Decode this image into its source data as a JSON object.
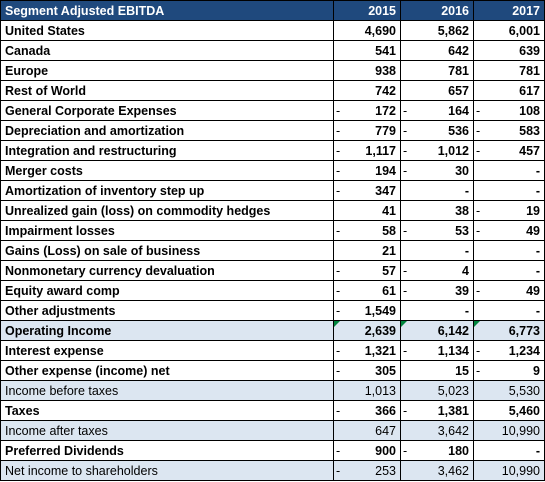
{
  "table": {
    "header": {
      "label": "Segment Adjusted EBITDA",
      "years": [
        "2015",
        "2016",
        "2017"
      ]
    },
    "rows": [
      {
        "label": "United States",
        "cells": [
          {
            "sign": "",
            "value": "4,690"
          },
          {
            "sign": "",
            "value": "5,862"
          },
          {
            "sign": "",
            "value": "6,001"
          }
        ]
      },
      {
        "label": "Canada",
        "cells": [
          {
            "sign": "",
            "value": "541"
          },
          {
            "sign": "",
            "value": "642"
          },
          {
            "sign": "",
            "value": "639"
          }
        ]
      },
      {
        "label": "Europe",
        "cells": [
          {
            "sign": "",
            "value": "938"
          },
          {
            "sign": "",
            "value": "781"
          },
          {
            "sign": "",
            "value": "781"
          }
        ]
      },
      {
        "label": "Rest of World",
        "cells": [
          {
            "sign": "",
            "value": "742"
          },
          {
            "sign": "",
            "value": "657"
          },
          {
            "sign": "",
            "value": "617"
          }
        ]
      },
      {
        "label": "General Corporate Expenses",
        "cells": [
          {
            "sign": "-",
            "value": "172"
          },
          {
            "sign": "-",
            "value": "164"
          },
          {
            "sign": "-",
            "value": "108"
          }
        ]
      },
      {
        "label": "Depreciation and amortization",
        "cells": [
          {
            "sign": "-",
            "value": "779"
          },
          {
            "sign": "-",
            "value": "536"
          },
          {
            "sign": "-",
            "value": "583"
          }
        ]
      },
      {
        "label": "Integration and restructuring",
        "cells": [
          {
            "sign": "-",
            "value": "1,117"
          },
          {
            "sign": "-",
            "value": "1,012"
          },
          {
            "sign": "-",
            "value": "457"
          }
        ]
      },
      {
        "label": "Merger costs",
        "cells": [
          {
            "sign": "-",
            "value": "194"
          },
          {
            "sign": "-",
            "value": "30"
          },
          {
            "sign": "",
            "value": "-"
          }
        ]
      },
      {
        "label": "Amortization of inventory step up",
        "cells": [
          {
            "sign": "-",
            "value": "347"
          },
          {
            "sign": "",
            "value": "-"
          },
          {
            "sign": "",
            "value": "-"
          }
        ]
      },
      {
        "label": "Unrealized gain (loss) on commodity hedges",
        "cells": [
          {
            "sign": "",
            "value": "41"
          },
          {
            "sign": "",
            "value": "38"
          },
          {
            "sign": "-",
            "value": "19"
          }
        ]
      },
      {
        "label": "Impairment losses",
        "cells": [
          {
            "sign": "-",
            "value": "58"
          },
          {
            "sign": "-",
            "value": "53"
          },
          {
            "sign": "-",
            "value": "49"
          }
        ]
      },
      {
        "label": "Gains (Loss) on sale of business",
        "cells": [
          {
            "sign": "",
            "value": "21"
          },
          {
            "sign": "",
            "value": "-"
          },
          {
            "sign": "",
            "value": "-"
          }
        ]
      },
      {
        "label": "Nonmonetary currency devaluation",
        "cells": [
          {
            "sign": "-",
            "value": "57"
          },
          {
            "sign": "-",
            "value": "4"
          },
          {
            "sign": "",
            "value": "-"
          }
        ]
      },
      {
        "label": "Equity award comp",
        "cells": [
          {
            "sign": "-",
            "value": "61"
          },
          {
            "sign": "-",
            "value": "39"
          },
          {
            "sign": "-",
            "value": "49"
          }
        ]
      },
      {
        "label": "Other adjustments",
        "cells": [
          {
            "sign": "-",
            "value": "1,549"
          },
          {
            "sign": "",
            "value": "-"
          },
          {
            "sign": "",
            "value": "-"
          }
        ]
      },
      {
        "label": "Operating Income",
        "cells": [
          {
            "sign": "",
            "value": "2,639"
          },
          {
            "sign": "",
            "value": "6,142"
          },
          {
            "sign": "",
            "value": "6,773"
          }
        ]
      },
      {
        "label": "Interest expense",
        "cells": [
          {
            "sign": "-",
            "value": "1,321"
          },
          {
            "sign": "-",
            "value": "1,134"
          },
          {
            "sign": "-",
            "value": "1,234"
          }
        ]
      },
      {
        "label": "Other expense (income) net",
        "cells": [
          {
            "sign": "-",
            "value": "305"
          },
          {
            "sign": "",
            "value": "15"
          },
          {
            "sign": "-",
            "value": "9"
          }
        ]
      },
      {
        "label": "Income before taxes",
        "cells": [
          {
            "sign": "",
            "value": "1,013"
          },
          {
            "sign": "",
            "value": "5,023"
          },
          {
            "sign": "",
            "value": "5,530"
          }
        ]
      },
      {
        "label": "Taxes",
        "cells": [
          {
            "sign": "-",
            "value": "366"
          },
          {
            "sign": "-",
            "value": "1,381"
          },
          {
            "sign": "",
            "value": "5,460"
          }
        ]
      },
      {
        "label": "Income after taxes",
        "cells": [
          {
            "sign": "",
            "value": "647"
          },
          {
            "sign": "",
            "value": "3,642"
          },
          {
            "sign": "",
            "value": "10,990"
          }
        ]
      },
      {
        "label": "Preferred Dividends",
        "cells": [
          {
            "sign": "-",
            "value": "900"
          },
          {
            "sign": "-",
            "value": "180"
          },
          {
            "sign": "",
            "value": "-"
          }
        ]
      },
      {
        "label": "Net income to shareholders",
        "cells": [
          {
            "sign": "-",
            "value": "253"
          },
          {
            "sign": "",
            "value": "3,462"
          },
          {
            "sign": "",
            "value": "10,990"
          }
        ]
      }
    ]
  },
  "colors": {
    "header_bg": "#1f497d",
    "highlight_row_bg": "#dce6f1",
    "comment_flag": "#00863d"
  }
}
